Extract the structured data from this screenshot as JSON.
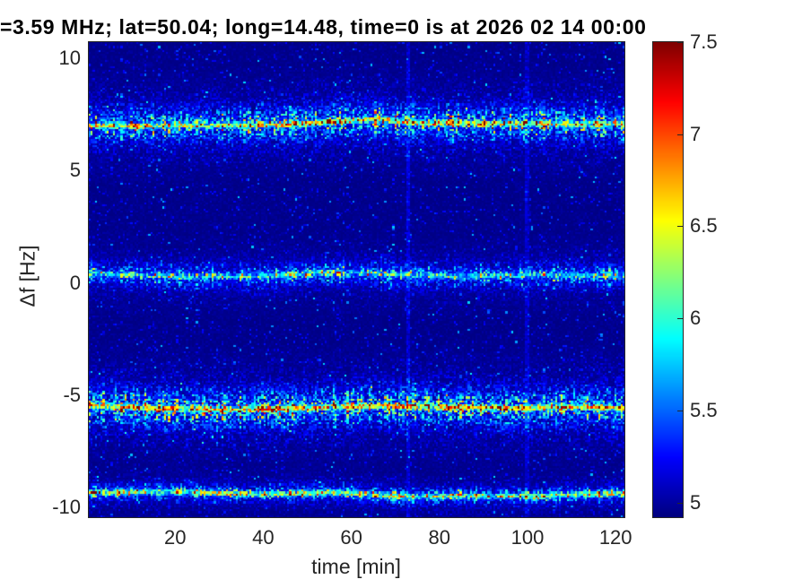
{
  "figure": {
    "title": "=3.59 MHz;  lat=50.04; long=14.48, time=0 is at 2026 02 14 00:00"
  },
  "chart_data": {
    "type": "heatmap",
    "subtype": "doppler-spectrogram",
    "title": "=3.59 MHz;  lat=50.04; long=14.48, time=0 is at 2026 02 14 00:00",
    "xlabel": "time [min]",
    "ylabel": "Δf [Hz]",
    "x_unit": "min",
    "y_unit": "Hz",
    "x_range": [
      0.4,
      122.0
    ],
    "y_range": [
      -10.44,
      10.72
    ],
    "x_ticks": [
      20,
      40,
      60,
      80,
      100,
      120
    ],
    "y_ticks": [
      10,
      5,
      0,
      -5,
      -10
    ],
    "colormap": "jet",
    "color_axis": [
      4.92,
      7.5
    ],
    "colorbar_ticks": [
      5,
      5.5,
      6,
      6.5,
      7,
      7.5
    ],
    "background_level": 4.95,
    "bands": [
      {
        "name": "upper-sideband",
        "approx_center_hz": 7.05,
        "sigma_hz": 0.45,
        "halo_amp": 1.05,
        "core_amp": 1.3,
        "keyframes": [
          [
            0,
            7.0
          ],
          [
            15,
            6.98
          ],
          [
            30,
            7.02
          ],
          [
            45,
            7.05
          ],
          [
            58,
            7.2
          ],
          [
            66,
            7.28
          ],
          [
            75,
            7.12
          ],
          [
            90,
            7.08
          ],
          [
            100,
            7.12
          ],
          [
            110,
            7.05
          ],
          [
            122,
            7.08
          ]
        ]
      },
      {
        "name": "carrier-band",
        "approx_center_hz": 0.33,
        "sigma_hz": 0.33,
        "halo_amp": 0.72,
        "core_amp": 0.72,
        "keyframes": [
          [
            0,
            0.42
          ],
          [
            20,
            0.28
          ],
          [
            40,
            0.3
          ],
          [
            55,
            0.45
          ],
          [
            70,
            0.38
          ],
          [
            85,
            0.28
          ],
          [
            100,
            0.35
          ],
          [
            122,
            0.3
          ]
        ]
      },
      {
        "name": "lower-sideband",
        "approx_center_hz": -5.58,
        "sigma_hz": 0.5,
        "halo_amp": 1.1,
        "core_amp": 1.5,
        "keyframes": [
          [
            0,
            -5.45
          ],
          [
            15,
            -5.6
          ],
          [
            30,
            -5.65
          ],
          [
            45,
            -5.6
          ],
          [
            60,
            -5.5
          ],
          [
            72,
            -5.48
          ],
          [
            85,
            -5.55
          ],
          [
            100,
            -5.6
          ],
          [
            112,
            -5.52
          ],
          [
            122,
            -5.6
          ]
        ]
      },
      {
        "name": "bottom-band",
        "approx_center_hz": -9.42,
        "sigma_hz": 0.22,
        "halo_amp": 0.8,
        "core_amp": 1.15,
        "keyframes": [
          [
            0,
            -9.35
          ],
          [
            20,
            -9.3
          ],
          [
            40,
            -9.42
          ],
          [
            55,
            -9.32
          ],
          [
            70,
            -9.5
          ],
          [
            85,
            -9.48
          ],
          [
            100,
            -9.5
          ],
          [
            112,
            -9.42
          ],
          [
            122,
            -9.38
          ]
        ]
      }
    ],
    "vertical_streaks": [
      {
        "time_min": 73,
        "amplitude": 0.3
      },
      {
        "time_min": 100,
        "amplitude": 0.25
      }
    ],
    "noise": {
      "seed": 20260214,
      "nx": 270,
      "ny": 240,
      "base_level": 4.93,
      "base_jitter": 0.1,
      "speckle_prob": 0.1,
      "speckle_amp": 0.35,
      "bright_speckle_prob": 0.012,
      "bright_speckle_amp": 0.8
    }
  }
}
